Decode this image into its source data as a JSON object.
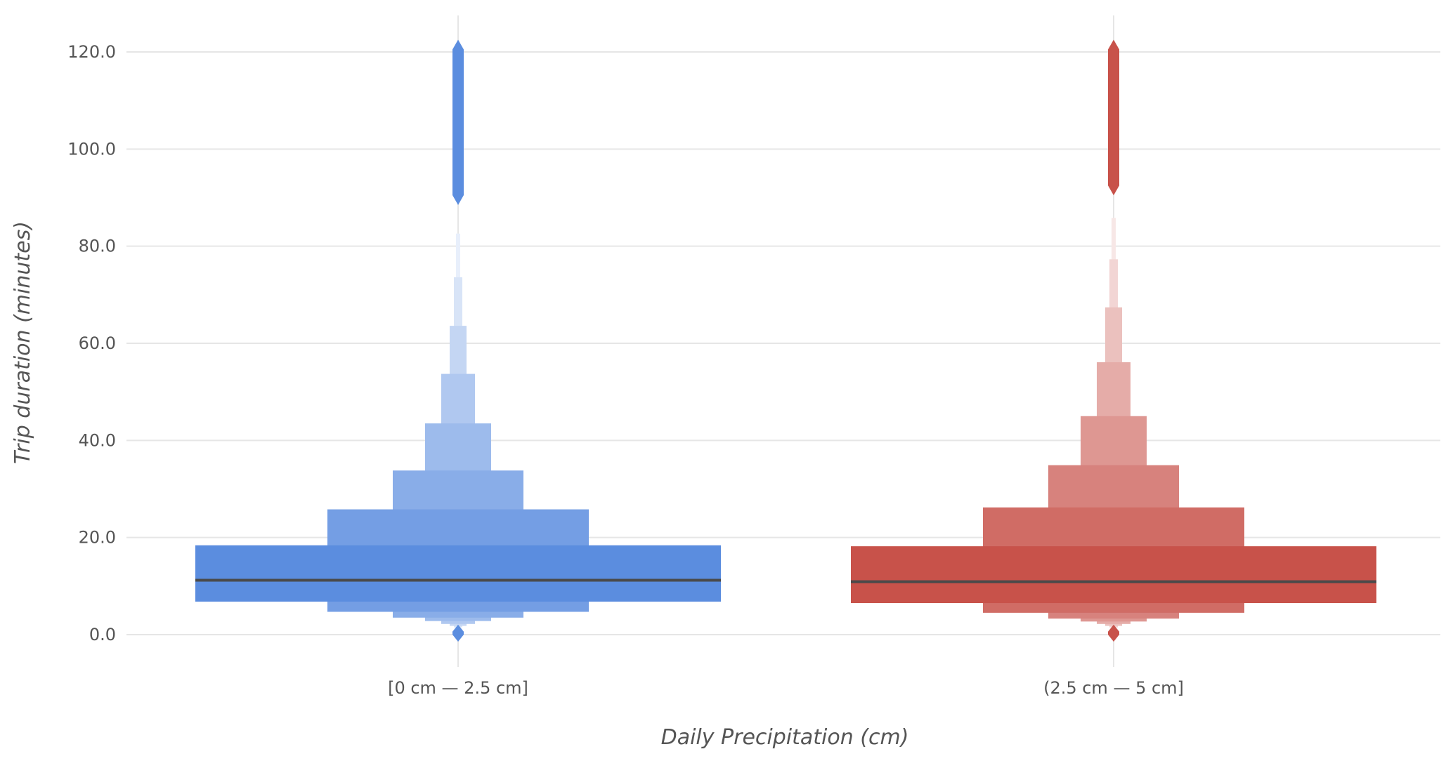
{
  "chart_data": {
    "type": "boxen",
    "xlabel": "Daily Precipitation (cm)",
    "ylabel": "Trip duration (minutes)",
    "ylim": [
      -6.5,
      127.5
    ],
    "yticks": [
      0,
      20,
      40,
      60,
      80,
      100,
      120
    ],
    "ytick_labels": [
      "0.0",
      "20.0",
      "40.0",
      "60.0",
      "80.0",
      "100.0",
      "120.0"
    ],
    "grid": true,
    "categories": [
      "[0 cm — 2.5 cm]",
      "(2.5 cm — 5 cm]"
    ],
    "series": [
      {
        "category": "[0 cm — 2.5 cm]",
        "color": "#5b8ddf",
        "median": 11.2,
        "boxes": [
          {
            "low": 6.8,
            "high": 18.4
          },
          {
            "low": 4.7,
            "high": 25.8
          },
          {
            "low": 3.5,
            "high": 33.8
          },
          {
            "low": 2.8,
            "high": 43.5
          },
          {
            "low": 2.2,
            "high": 53.7
          },
          {
            "low": 1.8,
            "high": 63.6
          },
          {
            "low": 1.5,
            "high": 73.6
          },
          {
            "low": 1.3,
            "high": 82.6
          }
        ],
        "outliers_low": {
          "min": 0.0,
          "max": 1.2
        },
        "outliers_high": {
          "min": 90.5,
          "max": 120.5
        }
      },
      {
        "category": "(2.5 cm — 5 cm]",
        "color": "#c8524a",
        "median": 10.9,
        "boxes": [
          {
            "low": 6.5,
            "high": 18.2
          },
          {
            "low": 4.5,
            "high": 26.2
          },
          {
            "low": 3.3,
            "high": 34.9
          },
          {
            "low": 2.7,
            "high": 45.0
          },
          {
            "low": 2.2,
            "high": 56.1
          },
          {
            "low": 1.8,
            "high": 67.4
          },
          {
            "low": 1.5,
            "high": 77.3
          },
          {
            "low": 1.3,
            "high": 85.8
          }
        ],
        "outliers_low": {
          "min": 0.0,
          "max": 1.2
        },
        "outliers_high": {
          "min": 92.5,
          "max": 120.5
        }
      }
    ]
  }
}
